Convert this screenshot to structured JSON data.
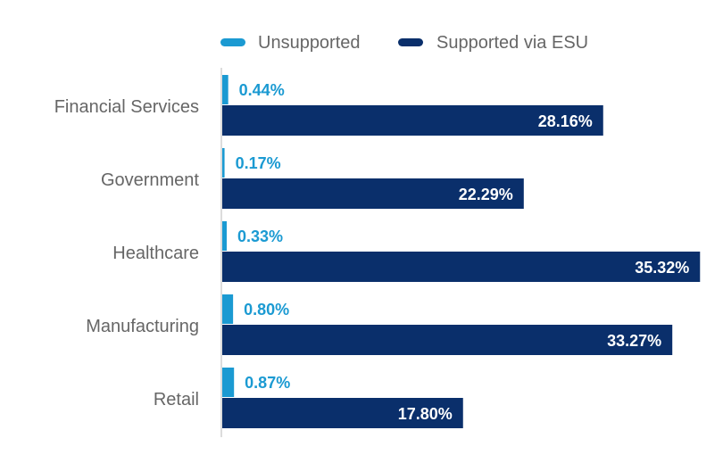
{
  "chart_data": {
    "type": "bar",
    "orientation": "horizontal",
    "categories": [
      "Financial Services",
      "Government",
      "Healthcare",
      "Manufacturing",
      "Retail"
    ],
    "series": [
      {
        "name": "Unsupported",
        "values": [
          0.44,
          0.17,
          0.33,
          0.8,
          0.87
        ],
        "labels": [
          "0.44%",
          "0.17%",
          "0.33%",
          "0.80%",
          "0.87%"
        ],
        "color": "#1B9AD2"
      },
      {
        "name": "Supported via ESU",
        "values": [
          28.16,
          22.29,
          35.32,
          33.27,
          17.8
        ],
        "labels": [
          "28.16%",
          "22.29%",
          "35.32%",
          "33.27%",
          "17.80%"
        ],
        "color": "#0A2F6B"
      }
    ],
    "xlim": [
      0,
      35.5
    ],
    "legend_position": "top",
    "grid": false,
    "axis_color": "#d0d0d0"
  }
}
